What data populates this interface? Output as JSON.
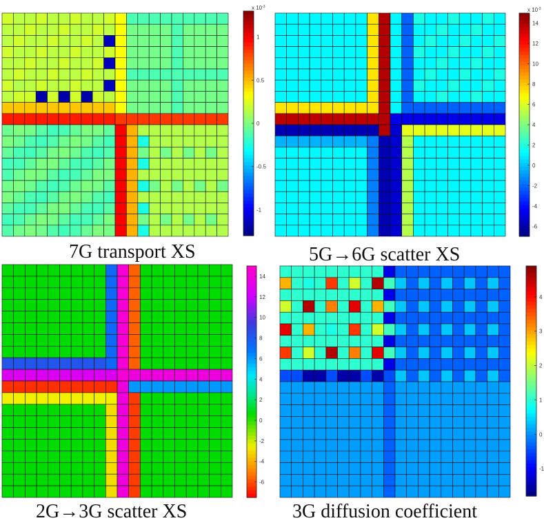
{
  "chart_data": [
    {
      "type": "heatmap",
      "title": "7G transport XS",
      "grid": "20x20",
      "colormap": "jet",
      "colorbar": {
        "exponent_label": "x 10",
        "exponent_power": "-3",
        "ticks": [
          {
            "v": 1,
            "label": "1"
          },
          {
            "v": 0.5,
            "label": "0.5"
          },
          {
            "v": 0,
            "label": "0"
          },
          {
            "v": -0.5,
            "label": "-0.5"
          },
          {
            "v": -1,
            "label": "-1"
          }
        ],
        "range": [
          -1.3,
          1.3
        ]
      }
    },
    {
      "type": "heatmap",
      "title": "5G→6G scatter XS",
      "grid": "20x20",
      "colormap": "jet",
      "colorbar": {
        "exponent_label": "x 10",
        "exponent_power": "-3",
        "ticks": [
          {
            "v": 14,
            "label": "14"
          },
          {
            "v": 12,
            "label": "12"
          },
          {
            "v": 10,
            "label": "10"
          },
          {
            "v": 8,
            "label": "8"
          },
          {
            "v": 6,
            "label": "6"
          },
          {
            "v": 4,
            "label": "4"
          },
          {
            "v": 2,
            "label": "2"
          },
          {
            "v": 0,
            "label": "0"
          },
          {
            "v": -2,
            "label": "-2"
          },
          {
            "v": -4,
            "label": "-4"
          },
          {
            "v": -6,
            "label": "-6"
          }
        ],
        "range": [
          -7,
          15
        ]
      }
    },
    {
      "type": "heatmap",
      "title": "2G→3G scatter XS",
      "grid": "20x20",
      "colormap": "custom",
      "colorbar": {
        "ticks": [
          {
            "v": 14,
            "label": "14"
          },
          {
            "v": 12,
            "label": "12"
          },
          {
            "v": 10,
            "label": "10"
          },
          {
            "v": 8,
            "label": "8"
          },
          {
            "v": 6,
            "label": "6"
          },
          {
            "v": 4,
            "label": "4"
          },
          {
            "v": 2,
            "label": "2"
          },
          {
            "v": 0,
            "label": "0"
          },
          {
            "v": -2,
            "label": "-2"
          },
          {
            "v": -4,
            "label": "-4"
          },
          {
            "v": -6,
            "label": "-6"
          }
        ],
        "range": [
          -7.5,
          15
        ]
      }
    },
    {
      "type": "heatmap",
      "title": "3G diffusion coefficient",
      "grid": "20x20",
      "colormap": "jet",
      "colorbar": {
        "ticks": [
          {
            "v": 4,
            "label": "4"
          },
          {
            "v": 3,
            "label": "3"
          },
          {
            "v": 2,
            "label": "2"
          },
          {
            "v": 1,
            "label": "1"
          },
          {
            "v": 0,
            "label": "0"
          },
          {
            "v": -1,
            "label": "-1"
          }
        ],
        "range": [
          -1.8,
          4.9
        ]
      }
    }
  ]
}
